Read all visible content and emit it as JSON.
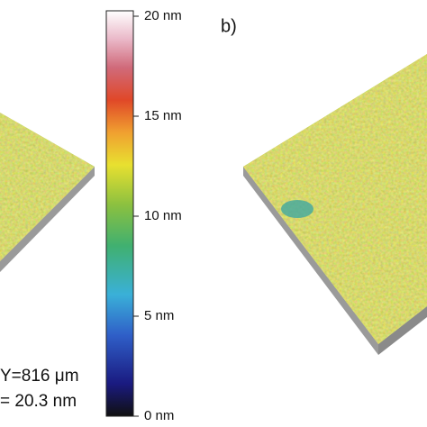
{
  "panel_label": "b)",
  "annotations": [
    "Y=816 μm",
    "= 20.3 nm"
  ],
  "colorbar": {
    "ticks": [
      {
        "value": 0,
        "label": "0 nm"
      },
      {
        "value": 5,
        "label": "5 nm"
      },
      {
        "value": 10,
        "label": "10 nm"
      },
      {
        "value": 15,
        "label": "15 nm"
      },
      {
        "value": 20,
        "label": "20 nm"
      }
    ]
  }
}
